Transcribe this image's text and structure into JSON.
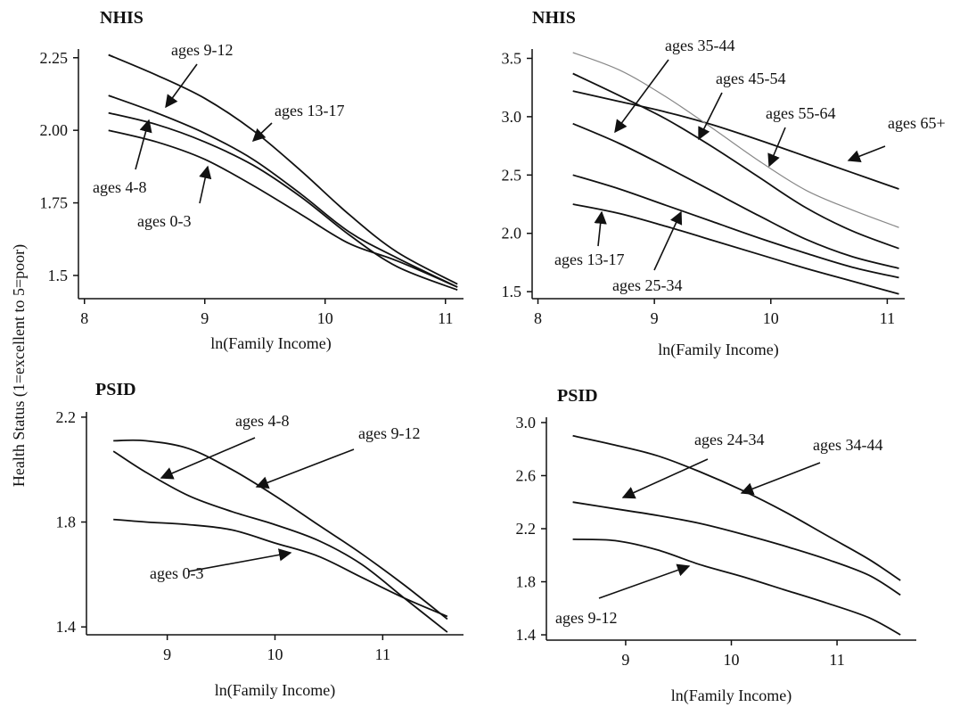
{
  "figure": {
    "ylabel": "Health Status (1=excellent to 5=poor)"
  },
  "chart_data": [
    {
      "type": "line",
      "title": "NHIS",
      "xlabel": "ln(Family Income)",
      "ylabel": "Health Status (1=excellent to 5=poor)",
      "xlim": [
        7.95,
        11.15
      ],
      "ylim": [
        1.42,
        2.28
      ],
      "xticks": [
        8,
        9,
        10,
        11
      ],
      "yticks": [
        1.5,
        1.75,
        2.0,
        2.25
      ],
      "xtick_labels": [
        "8",
        "9",
        "10",
        "11"
      ],
      "ytick_labels": [
        "1.5",
        "1.75",
        "2.00",
        "2.25"
      ],
      "series": [
        {
          "name": "ages 13-17",
          "x": [
            8.2,
            8.6,
            9.0,
            9.4,
            9.8,
            10.2,
            10.6,
            11.1
          ],
          "y": [
            2.26,
            2.19,
            2.11,
            2.0,
            1.86,
            1.71,
            1.58,
            1.47
          ]
        },
        {
          "name": "ages 9-12",
          "x": [
            8.2,
            8.6,
            9.0,
            9.4,
            9.8,
            10.2,
            10.6,
            11.1
          ],
          "y": [
            2.12,
            2.06,
            1.99,
            1.9,
            1.78,
            1.65,
            1.56,
            1.46
          ]
        },
        {
          "name": "ages 4-8",
          "x": [
            8.2,
            8.6,
            9.0,
            9.4,
            9.8,
            10.2,
            10.6,
            11.1
          ],
          "y": [
            2.06,
            2.02,
            1.96,
            1.88,
            1.77,
            1.64,
            1.53,
            1.45
          ]
        },
        {
          "name": "ages 0-3",
          "x": [
            8.2,
            8.6,
            9.0,
            9.4,
            9.8,
            10.2,
            10.6,
            11.1
          ],
          "y": [
            2.0,
            1.96,
            1.9,
            1.81,
            1.71,
            1.61,
            1.55,
            1.46
          ]
        }
      ],
      "annotations": [
        {
          "text": "ages 9-12",
          "series": "ages 9-12"
        },
        {
          "text": "ages 13-17",
          "series": "ages 13-17"
        },
        {
          "text": "ages 4-8",
          "series": "ages 4-8"
        },
        {
          "text": "ages 0-3",
          "series": "ages 0-3"
        }
      ]
    },
    {
      "type": "line",
      "title": "NHIS",
      "xlabel": "ln(Family Income)",
      "ylabel": "",
      "xlim": [
        7.95,
        11.15
      ],
      "ylim": [
        1.44,
        3.58
      ],
      "xticks": [
        8,
        9,
        10,
        11
      ],
      "yticks": [
        1.5,
        2.0,
        2.5,
        3.0,
        3.5
      ],
      "xtick_labels": [
        "8",
        "9",
        "10",
        "11"
      ],
      "ytick_labels": [
        "1.5",
        "2.0",
        "2.5",
        "3.0",
        "3.5"
      ],
      "series": [
        {
          "name": "ages 65+",
          "x": [
            8.3,
            8.7,
            9.1,
            9.5,
            9.9,
            10.3,
            10.7,
            11.1
          ],
          "y": [
            3.22,
            3.13,
            3.04,
            2.93,
            2.8,
            2.66,
            2.52,
            2.38
          ],
          "color": "#111111"
        },
        {
          "name": "ages 55-64",
          "x": [
            8.3,
            8.7,
            9.1,
            9.5,
            9.9,
            10.3,
            10.7,
            11.1
          ],
          "y": [
            3.55,
            3.4,
            3.17,
            2.9,
            2.62,
            2.37,
            2.2,
            2.05
          ],
          "color": "#888888"
        },
        {
          "name": "ages 45-54",
          "x": [
            8.3,
            8.7,
            9.1,
            9.5,
            9.9,
            10.3,
            10.7,
            11.1
          ],
          "y": [
            3.37,
            3.18,
            2.98,
            2.74,
            2.48,
            2.22,
            2.02,
            1.87
          ],
          "color": "#111111"
        },
        {
          "name": "ages 35-44",
          "x": [
            8.3,
            8.7,
            9.1,
            9.5,
            9.9,
            10.3,
            10.7,
            11.1
          ],
          "y": [
            2.94,
            2.77,
            2.57,
            2.36,
            2.15,
            1.95,
            1.8,
            1.7
          ],
          "color": "#111111"
        },
        {
          "name": "ages 25-34",
          "x": [
            8.3,
            8.7,
            9.1,
            9.5,
            9.9,
            10.3,
            10.7,
            11.1
          ],
          "y": [
            2.5,
            2.38,
            2.24,
            2.1,
            1.96,
            1.83,
            1.71,
            1.62
          ],
          "color": "#111111"
        },
        {
          "name": "ages 13-17",
          "x": [
            8.3,
            8.7,
            9.1,
            9.5,
            9.9,
            10.3,
            10.7,
            11.1
          ],
          "y": [
            2.25,
            2.17,
            2.06,
            1.94,
            1.82,
            1.7,
            1.59,
            1.48
          ],
          "color": "#111111"
        }
      ],
      "annotations": [
        {
          "text": "ages 35-44",
          "series": "ages 35-44"
        },
        {
          "text": "ages 45-54",
          "series": "ages 45-54"
        },
        {
          "text": "ages 55-64",
          "series": "ages 55-64"
        },
        {
          "text": "ages 65+",
          "series": "ages 65+"
        },
        {
          "text": "ages 13-17",
          "series": "ages 13-17"
        },
        {
          "text": "ages 25-34",
          "series": "ages 25-34"
        }
      ]
    },
    {
      "type": "line",
      "title": "PSID",
      "xlabel": "ln(Family Income)",
      "ylabel": "",
      "xlim": [
        8.25,
        11.75
      ],
      "ylim": [
        1.37,
        2.22
      ],
      "xticks": [
        9,
        10,
        11
      ],
      "yticks": [
        1.4,
        1.8,
        2.2
      ],
      "xtick_labels": [
        "9",
        "10",
        "11"
      ],
      "ytick_labels": [
        "1.4",
        "1.8",
        "2.2"
      ],
      "series": [
        {
          "name": "ages 9-12",
          "x": [
            8.5,
            8.8,
            9.2,
            9.6,
            10.0,
            10.4,
            10.8,
            11.2,
            11.6
          ],
          "y": [
            2.11,
            2.11,
            2.08,
            2.0,
            1.9,
            1.79,
            1.68,
            1.56,
            1.43
          ]
        },
        {
          "name": "ages 4-8",
          "x": [
            8.5,
            8.8,
            9.2,
            9.6,
            10.0,
            10.4,
            10.8,
            11.2,
            11.6
          ],
          "y": [
            2.07,
            1.99,
            1.9,
            1.84,
            1.79,
            1.73,
            1.64,
            1.51,
            1.38
          ]
        },
        {
          "name": "ages 0-3",
          "x": [
            8.5,
            8.8,
            9.2,
            9.6,
            10.0,
            10.4,
            10.8,
            11.2,
            11.6
          ],
          "y": [
            1.81,
            1.8,
            1.79,
            1.77,
            1.72,
            1.67,
            1.59,
            1.51,
            1.44
          ]
        }
      ],
      "annotations": [
        {
          "text": "ages 4-8",
          "series": "ages 4-8"
        },
        {
          "text": "ages 9-12",
          "series": "ages 9-12"
        },
        {
          "text": "ages 0-3",
          "series": "ages 0-3"
        }
      ]
    },
    {
      "type": "line",
      "title": "PSID",
      "xlabel": "ln(Family Income)",
      "ylabel": "",
      "xlim": [
        8.25,
        11.75
      ],
      "ylim": [
        1.36,
        3.04
      ],
      "xticks": [
        9,
        10,
        11
      ],
      "yticks": [
        1.4,
        1.8,
        2.2,
        2.6,
        3.0
      ],
      "xtick_labels": [
        "9",
        "10",
        "11"
      ],
      "ytick_labels": [
        "1.4",
        "1.8",
        "2.2",
        "2.6",
        "3.0"
      ],
      "series": [
        {
          "name": "ages 34-44",
          "x": [
            8.5,
            8.9,
            9.3,
            9.7,
            10.1,
            10.5,
            10.9,
            11.3,
            11.6
          ],
          "y": [
            2.9,
            2.83,
            2.75,
            2.63,
            2.49,
            2.33,
            2.15,
            1.97,
            1.81
          ]
        },
        {
          "name": "ages 24-34",
          "x": [
            8.5,
            8.9,
            9.3,
            9.7,
            10.1,
            10.5,
            10.9,
            11.3,
            11.6
          ],
          "y": [
            2.4,
            2.35,
            2.3,
            2.24,
            2.16,
            2.07,
            1.97,
            1.85,
            1.7
          ]
        },
        {
          "name": "ages 9-12",
          "x": [
            8.5,
            8.9,
            9.3,
            9.7,
            10.1,
            10.5,
            10.9,
            11.3,
            11.6
          ],
          "y": [
            2.12,
            2.11,
            2.04,
            1.93,
            1.84,
            1.74,
            1.64,
            1.53,
            1.4
          ]
        }
      ],
      "annotations": [
        {
          "text": "ages 24-34",
          "series": "ages 24-34"
        },
        {
          "text": "ages 34-44",
          "series": "ages 34-44"
        },
        {
          "text": "ages 9-12",
          "series": "ages 9-12"
        }
      ]
    }
  ]
}
